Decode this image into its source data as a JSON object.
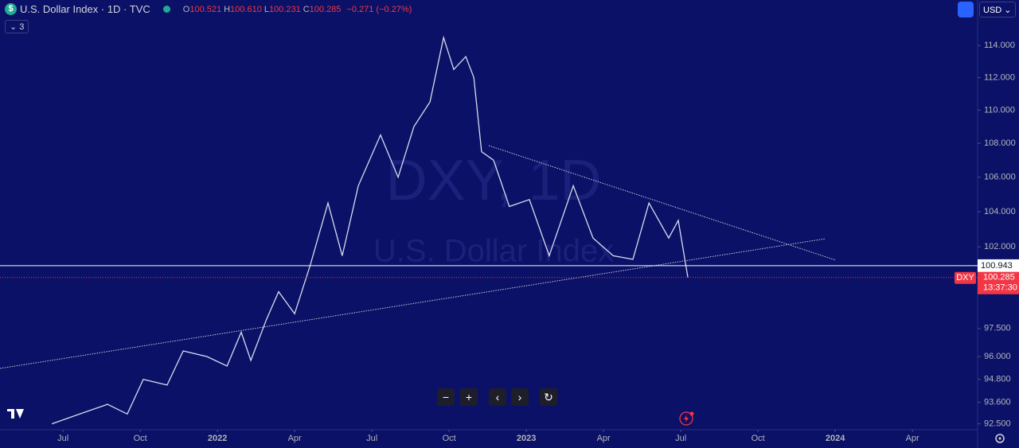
{
  "header": {
    "symbol": "U.S. Dollar Index · 1D · TVC",
    "ohlc": [
      {
        "key": "O",
        "value": "100.521"
      },
      {
        "key": "H",
        "value": "100.610"
      },
      {
        "key": "L",
        "value": "100.231"
      },
      {
        "key": "C",
        "value": "100.285"
      }
    ],
    "change": "−0.271 (−0.27%)",
    "indicators": "3",
    "currency": "USD"
  },
  "watermark": {
    "ticker": "DXY, 1D",
    "name": "U.S. Dollar Index"
  },
  "chart_data": {
    "type": "line",
    "log_scale": true,
    "grid": false,
    "x": [
      2021.464,
      2021.554,
      2021.644,
      2021.708,
      2021.76,
      2021.837,
      2021.889,
      2021.966,
      2022.031,
      2022.077,
      2022.108,
      2022.159,
      2022.198,
      2022.25,
      2022.301,
      2022.358,
      2022.404,
      2022.456,
      2022.528,
      2022.585,
      2022.636,
      2022.688,
      2022.732,
      2022.765,
      2022.804,
      2022.83,
      2022.855,
      2022.894,
      2022.945,
      2023.01,
      2023.074,
      2023.152,
      2023.216,
      2023.281,
      2023.345,
      2023.397,
      2023.461,
      2023.492,
      2023.523
    ],
    "series": [
      {
        "color": "#d8dcf0",
        "values": [
          92.5,
          93.0,
          93.5,
          93.0,
          94.8,
          94.5,
          96.3,
          96.0,
          95.5,
          97.3,
          95.8,
          98.0,
          99.5,
          98.3,
          101.0,
          104.5,
          101.5,
          105.5,
          108.5,
          106.0,
          109.0,
          110.5,
          114.5,
          112.5,
          113.3,
          112.0,
          107.5,
          107.0,
          104.3,
          104.7,
          101.5,
          105.5,
          102.5,
          101.5,
          101.3,
          104.5,
          102.5,
          103.5,
          100.285
        ]
      }
    ],
    "xlim": [
      2021.296,
      2024.461
    ],
    "xticks": [
      {
        "value": 2021.5,
        "label": "Jul"
      },
      {
        "value": 2021.75,
        "label": "Oct"
      },
      2022,
      {
        "value": 2022.25,
        "label": "Apr"
      },
      {
        "value": 2022.5,
        "label": "Jul"
      },
      {
        "value": 2022.75,
        "label": "Oct"
      },
      2023,
      {
        "value": 2023.25,
        "label": "Apr"
      },
      {
        "value": 2023.5,
        "label": "Jul"
      },
      {
        "value": 2023.75,
        "label": "Oct"
      },
      2024,
      {
        "value": 2024.25,
        "label": "Apr"
      }
    ],
    "ylim": [
      92.2,
      116.9
    ],
    "yticks": [
      {
        "value": 114,
        "label": "114.000"
      },
      {
        "value": 112,
        "label": "112.000"
      },
      {
        "value": 110,
        "label": "110.000"
      },
      {
        "value": 108,
        "label": "108.000"
      },
      {
        "value": 106,
        "label": "106.000"
      },
      {
        "value": 104,
        "label": "104.000"
      },
      {
        "value": 102,
        "label": "102.000"
      },
      {
        "value": 97.5,
        "label": "97.500"
      },
      {
        "value": 96,
        "label": "96.000"
      },
      {
        "value": 94.8,
        "label": "94.800"
      },
      {
        "value": 93.6,
        "label": "93.600"
      },
      {
        "value": 92.5,
        "label": "92.500"
      }
    ],
    "price_line": {
      "value": 100.943,
      "label": "100.943"
    },
    "last_price": {
      "value": 100.285,
      "label": "100.285",
      "ticker": "DXY",
      "countdown": "13:37:30"
    }
  }
}
